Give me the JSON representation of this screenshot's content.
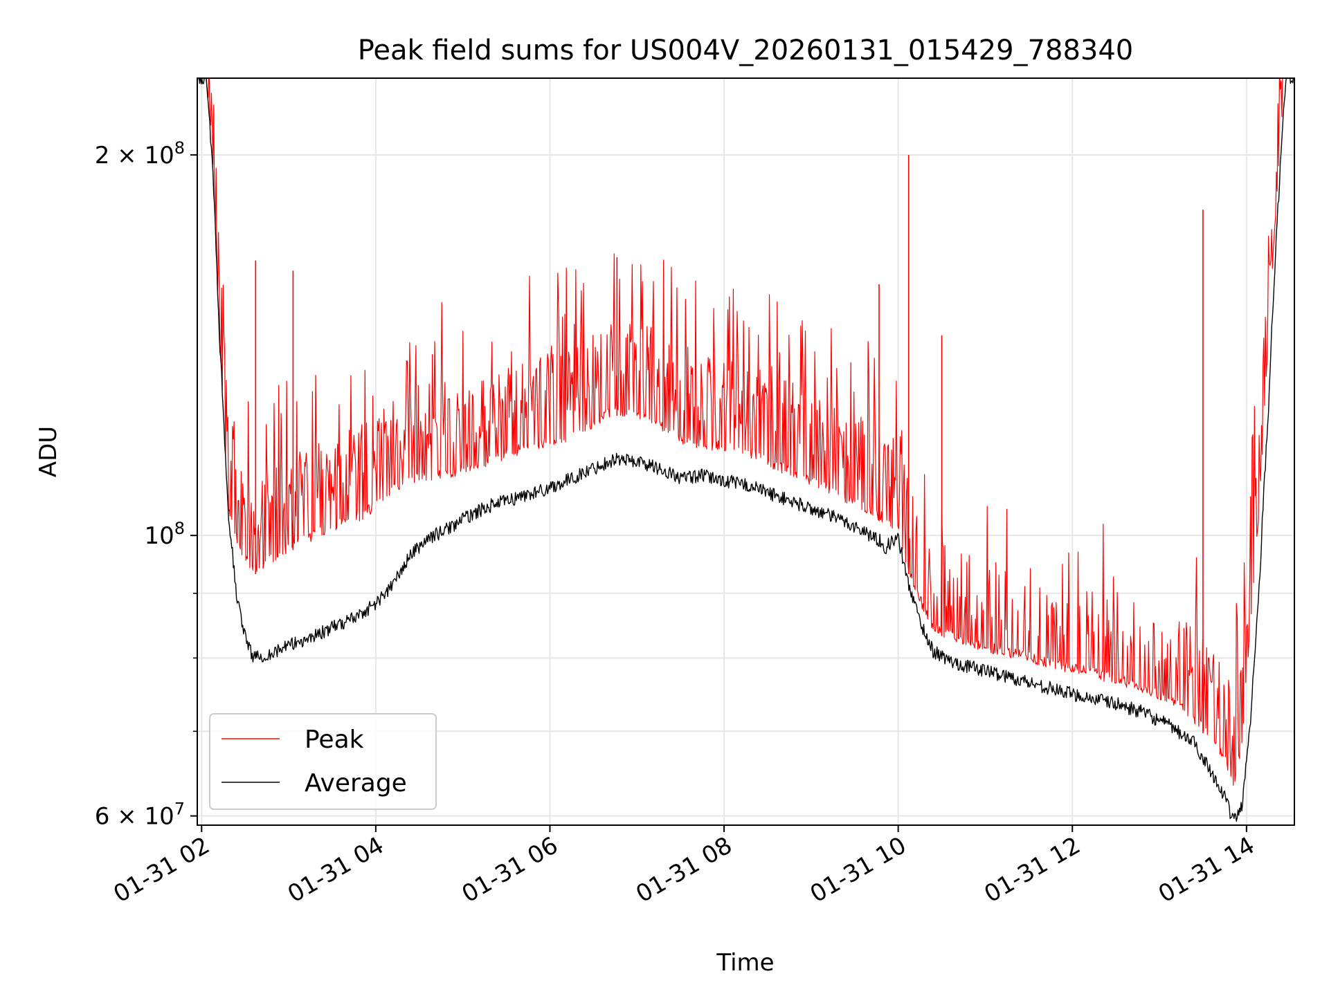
{
  "chart_data": {
    "type": "line",
    "title": "Peak field sums for US004V_20260131_015429_788340",
    "xlabel": "Time",
    "ylabel": "ADU",
    "x_unit": "hours since 2026-01-31 00:00",
    "xlim": [
      1.95,
      14.55
    ],
    "ylim": [
      59000000,
      230000000
    ],
    "yscale": "log",
    "grid": true,
    "legend_position": "lower-left",
    "x_ticks": [
      {
        "value": 2,
        "label": "01-31 02"
      },
      {
        "value": 4,
        "label": "01-31 04"
      },
      {
        "value": 6,
        "label": "01-31 06"
      },
      {
        "value": 8,
        "label": "01-31 08"
      },
      {
        "value": 10,
        "label": "01-31 10"
      },
      {
        "value": 12,
        "label": "01-31 12"
      },
      {
        "value": 14,
        "label": "01-31 14"
      }
    ],
    "y_major_ticks": [
      {
        "value": 60000000,
        "base": "6 × 10",
        "exp": "7"
      },
      {
        "value": 100000000,
        "base": "10",
        "exp": "8"
      },
      {
        "value": 200000000,
        "base": "2 × 10",
        "exp": "8"
      }
    ],
    "y_minor_ticks": [
      70000000,
      80000000,
      90000000
    ],
    "series": [
      {
        "name": "Peak",
        "color": "#ff0000",
        "x": [
          1.95,
          2.05,
          2.12,
          2.2,
          2.3,
          2.45,
          2.6,
          2.8,
          3.0,
          3.2,
          3.5,
          3.8,
          4.0,
          4.2,
          4.4,
          4.6,
          4.8,
          5.0,
          5.3,
          5.6,
          5.9,
          6.2,
          6.5,
          6.75,
          7.0,
          7.25,
          7.5,
          7.75,
          8.0,
          8.3,
          8.6,
          9.0,
          9.4,
          9.8,
          9.9,
          10.0,
          10.1,
          10.25,
          10.4,
          10.6,
          10.8,
          11.0,
          11.3,
          11.6,
          11.9,
          12.2,
          12.5,
          12.8,
          13.1,
          13.4,
          13.6,
          13.75,
          13.85,
          13.95,
          14.05,
          14.15,
          14.25,
          14.35,
          14.45,
          14.55
        ],
        "values": [
          230000000,
          230000000,
          200000000,
          145000000,
          105000000,
          96000000,
          93000000,
          95000000,
          97000000,
          98500000,
          100500000,
          102500000,
          104500000,
          108000000,
          110000000,
          110500000,
          111000000,
          111500000,
          113500000,
          115500000,
          117000000,
          118500000,
          121500000,
          124500000,
          123000000,
          121500000,
          118000000,
          117000000,
          116500000,
          115000000,
          112500000,
          109500000,
          106000000,
          102500000,
          101000000,
          100500000,
          94000000,
          88000000,
          84000000,
          82500000,
          81500000,
          80800000,
          80000000,
          79000000,
          78000000,
          77200000,
          76200000,
          75000000,
          73500000,
          71000000,
          68500000,
          66000000,
          63000000,
          68000000,
          85000000,
          105000000,
          140000000,
          185000000,
          230000000,
          230000000
        ],
        "spikes": [
          {
            "x": 2.62,
            "y": 165000000
          },
          {
            "x": 3.05,
            "y": 162000000
          },
          {
            "x": 6.77,
            "y": 166000000
          },
          {
            "x": 9.78,
            "y": 158000000
          },
          {
            "x": 10.12,
            "y": 200000000
          },
          {
            "x": 10.5,
            "y": 144000000
          },
          {
            "x": 13.5,
            "y": 181000000
          }
        ]
      },
      {
        "name": "Average",
        "color": "#000000",
        "x": [
          1.95,
          2.05,
          2.12,
          2.2,
          2.3,
          2.4,
          2.5,
          2.6,
          2.8,
          3.0,
          3.2,
          3.5,
          3.8,
          4.0,
          4.2,
          4.4,
          4.6,
          4.8,
          5.0,
          5.3,
          5.6,
          5.9,
          6.2,
          6.5,
          6.75,
          7.0,
          7.25,
          7.5,
          7.75,
          8.0,
          8.3,
          8.6,
          9.0,
          9.4,
          9.8,
          9.85,
          9.9,
          10.0,
          10.1,
          10.25,
          10.4,
          10.6,
          10.8,
          11.0,
          11.3,
          11.6,
          11.9,
          12.2,
          12.5,
          12.8,
          13.1,
          13.4,
          13.6,
          13.75,
          13.85,
          13.95,
          14.05,
          14.15,
          14.25,
          14.35,
          14.45,
          14.55
        ],
        "values": [
          230000000,
          230000000,
          200000000,
          145000000,
          105000000,
          90000000,
          83000000,
          80000000,
          80700000,
          81800000,
          82800000,
          84500000,
          86500000,
          88300000,
          91500000,
          96500000,
          99500000,
          101000000,
          103000000,
          105500000,
          107000000,
          108500000,
          110500000,
          113000000,
          115000000,
          114500000,
          113000000,
          111000000,
          111500000,
          110500000,
          109500000,
          107500000,
          105000000,
          102500000,
          99000000,
          97800000,
          98500000,
          99500000,
          92500000,
          85500000,
          81000000,
          79500000,
          78800000,
          78200000,
          77200000,
          76200000,
          75200000,
          74400000,
          73600000,
          72500000,
          70800000,
          68500000,
          65000000,
          62000000,
          59500000,
          61000000,
          72000000,
          92000000,
          125000000,
          175000000,
          230000000,
          230000000
        ]
      }
    ]
  }
}
